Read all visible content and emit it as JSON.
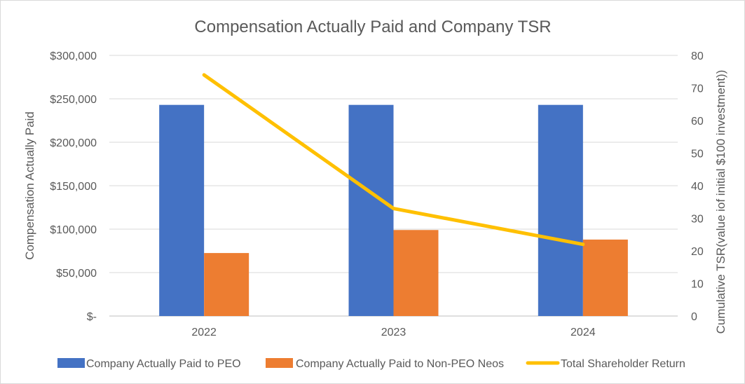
{
  "chart_data": {
    "type": "bar",
    "title": "Compensation Actually Paid and Company TSR",
    "categories": [
      "2022",
      "2023",
      "2024"
    ],
    "series": [
      {
        "name": "Company Actually Paid to PEO",
        "type": "bar",
        "axis": "left",
        "color": "#4472C4",
        "values": [
          243000,
          243000,
          243000
        ]
      },
      {
        "name": "Company Actually Paid to Non-PEO Neos",
        "type": "bar",
        "axis": "left",
        "color": "#ED7D31",
        "values": [
          72500,
          99000,
          88000
        ]
      },
      {
        "name": "Total Shareholder Return",
        "type": "line",
        "axis": "right",
        "color": "#FFC000",
        "values": [
          74,
          33,
          22
        ]
      }
    ],
    "y_left": {
      "label": "Compensation  Actually Paid",
      "range": [
        0,
        300000
      ],
      "ticks": [
        0,
        50000,
        100000,
        150000,
        200000,
        250000,
        300000
      ],
      "tick_labels": [
        "$-",
        "$50,000",
        "$100,000",
        "$150,000",
        "$200,000",
        "$250,000",
        "$300,000"
      ]
    },
    "y_right": {
      "label": "Cumulative TSR(value iof initial $100 investment))",
      "range": [
        0,
        80
      ],
      "ticks": [
        0,
        10,
        20,
        30,
        40,
        50,
        60,
        70,
        80
      ],
      "tick_labels": [
        "0",
        "10",
        "20",
        "30",
        "40",
        "50",
        "60",
        "70",
        "80"
      ]
    },
    "grid": true,
    "legend_position": "bottom"
  }
}
